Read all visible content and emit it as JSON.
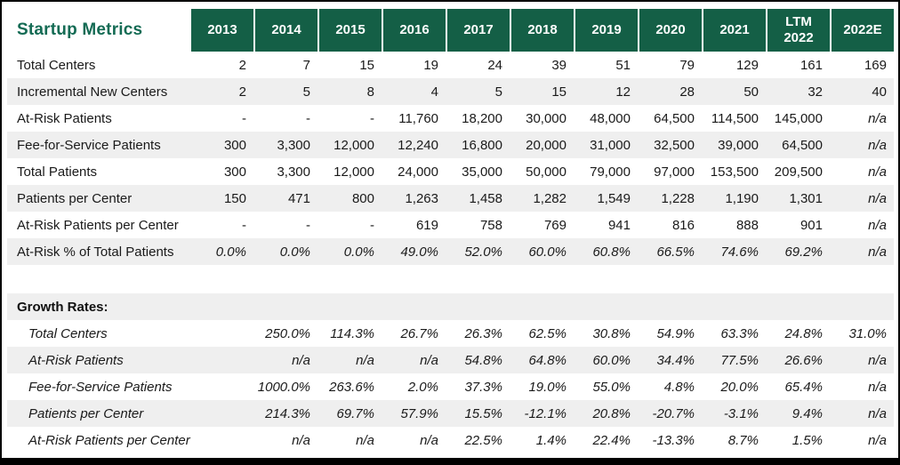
{
  "title": "Startup Metrics",
  "colors": {
    "header_green": "#145F46",
    "title_green": "#146B54",
    "row_alt": "#EFEFEF",
    "border_black": "#000000",
    "text": "#1A1A1A"
  },
  "chart_data": {
    "type": "table",
    "title": "Startup Metrics",
    "columns": [
      "2013",
      "2014",
      "2015",
      "2016",
      "2017",
      "2018",
      "2019",
      "2020",
      "2021",
      "LTM\n2022",
      "2022E"
    ],
    "sections": [
      {
        "name": "",
        "italic": false,
        "rows": [
          {
            "label": "Total Centers",
            "italic": false,
            "values": [
              "2",
              "7",
              "15",
              "19",
              "24",
              "39",
              "51",
              "79",
              "129",
              "161",
              "169"
            ]
          },
          {
            "label": "Incremental New Centers",
            "italic": false,
            "values": [
              "2",
              "5",
              "8",
              "4",
              "5",
              "15",
              "12",
              "28",
              "50",
              "32",
              "40"
            ]
          },
          {
            "label": "At-Risk Patients",
            "italic": false,
            "values": [
              "-",
              "-",
              "-",
              "11,760",
              "18,200",
              "30,000",
              "48,000",
              "64,500",
              "114,500",
              "145,000",
              "n/a"
            ]
          },
          {
            "label": "Fee-for-Service Patients",
            "italic": false,
            "values": [
              "300",
              "3,300",
              "12,000",
              "12,240",
              "16,800",
              "20,000",
              "31,000",
              "32,500",
              "39,000",
              "64,500",
              "n/a"
            ]
          },
          {
            "label": "Total Patients",
            "italic": false,
            "values": [
              "300",
              "3,300",
              "12,000",
              "24,000",
              "35,000",
              "50,000",
              "79,000",
              "97,000",
              "153,500",
              "209,500",
              "n/a"
            ]
          },
          {
            "label": "Patients per Center",
            "italic": false,
            "values": [
              "150",
              "471",
              "800",
              "1,263",
              "1,458",
              "1,282",
              "1,549",
              "1,228",
              "1,190",
              "1,301",
              "n/a"
            ]
          },
          {
            "label": "At-Risk Patients per Center",
            "italic": false,
            "values": [
              "-",
              "-",
              "-",
              "619",
              "758",
              "769",
              "941",
              "816",
              "888",
              "901",
              "n/a"
            ]
          },
          {
            "label": "At-Risk % of Total Patients",
            "italic": true,
            "values": [
              "0.0%",
              "0.0%",
              "0.0%",
              "49.0%",
              "52.0%",
              "60.0%",
              "60.8%",
              "66.5%",
              "74.6%",
              "69.2%",
              "n/a"
            ]
          }
        ]
      },
      {
        "name": "Growth Rates:",
        "italic": true,
        "rows": [
          {
            "label": "Total Centers",
            "italic": true,
            "values": [
              "",
              "250.0%",
              "114.3%",
              "26.7%",
              "26.3%",
              "62.5%",
              "30.8%",
              "54.9%",
              "63.3%",
              "24.8%",
              "31.0%"
            ]
          },
          {
            "label": "At-Risk Patients",
            "italic": true,
            "values": [
              "",
              "n/a",
              "n/a",
              "n/a",
              "54.8%",
              "64.8%",
              "60.0%",
              "34.4%",
              "77.5%",
              "26.6%",
              "n/a"
            ]
          },
          {
            "label": "Fee-for-Service Patients",
            "italic": true,
            "values": [
              "",
              "1000.0%",
              "263.6%",
              "2.0%",
              "37.3%",
              "19.0%",
              "55.0%",
              "4.8%",
              "20.0%",
              "65.4%",
              "n/a"
            ]
          },
          {
            "label": "Patients per Center",
            "italic": true,
            "values": [
              "",
              "214.3%",
              "69.7%",
              "57.9%",
              "15.5%",
              "-12.1%",
              "20.8%",
              "-20.7%",
              "-3.1%",
              "9.4%",
              "n/a"
            ]
          },
          {
            "label": "At-Risk Patients per Center",
            "italic": true,
            "values": [
              "",
              "n/a",
              "n/a",
              "n/a",
              "22.5%",
              "1.4%",
              "22.4%",
              "-13.3%",
              "8.7%",
              "1.5%",
              "n/a"
            ]
          }
        ]
      }
    ]
  }
}
